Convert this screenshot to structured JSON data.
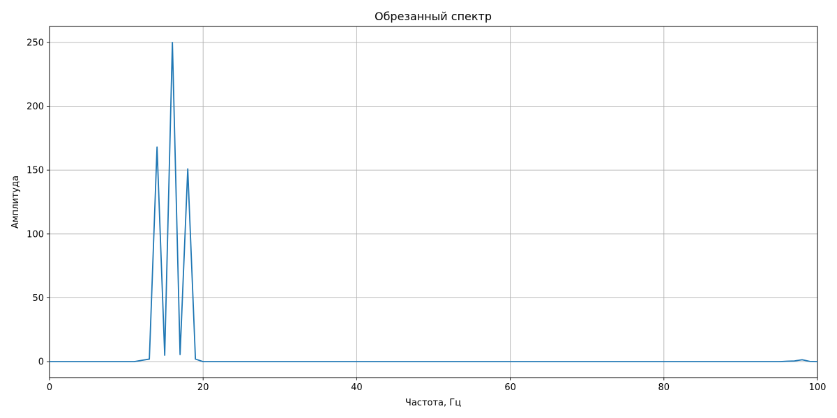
{
  "chart_data": {
    "type": "line",
    "title": "Обрезанный спектр",
    "xlabel": "Частота, Гц",
    "ylabel": "Амплитуда",
    "xlim": [
      0,
      100
    ],
    "ylim": [
      -12.5,
      262.5
    ],
    "xticks": [
      0,
      20,
      40,
      60,
      80,
      100
    ],
    "yticks": [
      0,
      50,
      100,
      150,
      200,
      250
    ],
    "xtick_labels": [
      "0",
      "20",
      "40",
      "60",
      "80",
      "100"
    ],
    "ytick_labels": [
      "0",
      "50",
      "100",
      "150",
      "200",
      "250"
    ],
    "grid": true,
    "series": [
      {
        "color": "#1f77b4",
        "x": [
          0,
          1,
          2,
          3,
          4,
          5,
          6,
          7,
          8,
          9,
          10,
          11,
          12,
          13,
          14,
          15,
          16,
          17,
          18,
          19,
          20,
          21,
          22,
          23,
          24,
          25,
          26,
          27,
          28,
          29,
          30,
          31,
          32,
          33,
          34,
          35,
          36,
          37,
          38,
          39,
          40,
          41,
          42,
          43,
          44,
          45,
          46,
          47,
          48,
          49,
          50,
          51,
          52,
          53,
          54,
          55,
          56,
          57,
          58,
          59,
          60,
          61,
          62,
          63,
          64,
          65,
          66,
          67,
          68,
          69,
          70,
          71,
          72,
          73,
          74,
          75,
          76,
          77,
          78,
          79,
          80,
          81,
          82,
          83,
          84,
          85,
          86,
          87,
          88,
          89,
          90,
          91,
          92,
          93,
          94,
          95,
          96,
          97,
          98,
          99,
          100
        ],
        "y": [
          0,
          0,
          0,
          0,
          0,
          0,
          0,
          0,
          0,
          0,
          0,
          0,
          1,
          2,
          168,
          5,
          250,
          5.5,
          151,
          2,
          0,
          0,
          0,
          0,
          0,
          0,
          0,
          0,
          0,
          0,
          0,
          0,
          0,
          0,
          0,
          0,
          0,
          0,
          0,
          0,
          0,
          0,
          0,
          0,
          0,
          0,
          0,
          0,
          0,
          0,
          0,
          0,
          0,
          0,
          0,
          0,
          0,
          0,
          0,
          0,
          0,
          0,
          0,
          0,
          0,
          0,
          0,
          0,
          0,
          0,
          0,
          0,
          0,
          0,
          0,
          0,
          0,
          0,
          0,
          0,
          0,
          0,
          0,
          0,
          0,
          0,
          0,
          0,
          0,
          0,
          0,
          0,
          0,
          0,
          0,
          0,
          0.3,
          0.5,
          1.5,
          0.2,
          0
        ]
      }
    ]
  }
}
